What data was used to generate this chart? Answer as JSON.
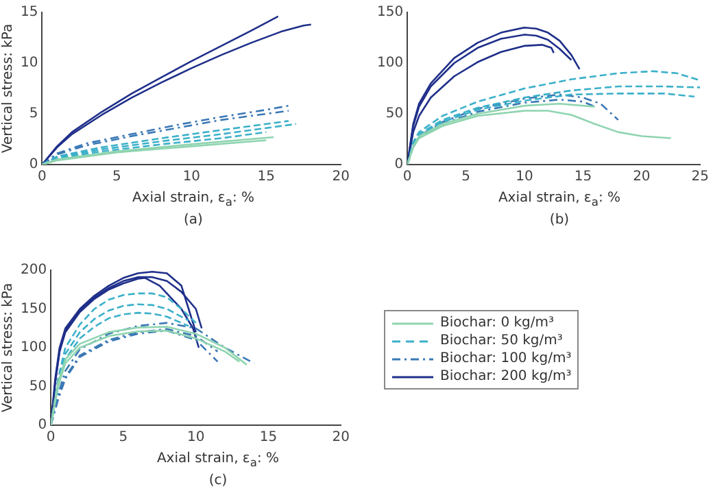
{
  "chart_data": [
    {
      "type": "line",
      "xlabel": "Axial strain, ε$_{a}$: %",
      "ylabel": "Vertical stress: kPa",
      "annotations": [
        "(a)"
      ],
      "xlim": [
        0,
        20
      ],
      "xticks": [
        0,
        5,
        10,
        15,
        20
      ],
      "ylim": [
        0,
        15
      ],
      "yticks": [
        0,
        5,
        10,
        15
      ],
      "marker": "none",
      "legend": false,
      "series": [
        {
          "color": "#8fd4b0",
          "line_style": "solid",
          "x": [
            0,
            1,
            5,
            10,
            15.5
          ],
          "values": [
            0,
            0.5,
            1.3,
            2.0,
            2.7
          ]
        },
        {
          "color": "#8fd4b0",
          "line_style": "solid",
          "x": [
            0,
            1,
            5,
            10,
            15
          ],
          "values": [
            0,
            0.4,
            1.2,
            1.8,
            2.4
          ]
        },
        {
          "color": "#3bb0c9",
          "line_style": "dashed",
          "x": [
            0,
            1,
            4,
            8,
            12,
            16.5
          ],
          "values": [
            0,
            0.8,
            1.7,
            2.6,
            3.4,
            4.3
          ]
        },
        {
          "color": "#3bb0c9",
          "line_style": "dashed",
          "x": [
            0,
            1,
            4,
            8,
            12,
            17
          ],
          "values": [
            0,
            0.7,
            1.5,
            2.3,
            3.0,
            4.0
          ]
        },
        {
          "color": "#3bb0c9",
          "line_style": "dashed",
          "x": [
            0,
            1,
            4,
            8,
            12,
            15
          ],
          "values": [
            0,
            0.6,
            1.3,
            2.0,
            2.6,
            3.2
          ]
        },
        {
          "color": "#3a78b5",
          "line_style": "dashdot",
          "x": [
            0,
            1,
            3,
            6,
            9,
            12,
            15,
            16.5
          ],
          "values": [
            0,
            1.1,
            2.1,
            3.0,
            3.9,
            4.7,
            5.4,
            5.8
          ]
        },
        {
          "color": "#3a78b5",
          "line_style": "dashdot",
          "x": [
            0,
            1,
            3,
            6,
            9,
            12,
            15,
            16.5
          ],
          "values": [
            0,
            1.0,
            1.9,
            2.8,
            3.6,
            4.4,
            5.0,
            5.3
          ]
        },
        {
          "color": "#1f2f8a",
          "line_style": "solid",
          "x": [
            0,
            1,
            2,
            4,
            6,
            8,
            10,
            12,
            14,
            15.8
          ],
          "values": [
            0,
            1.8,
            3.2,
            5.2,
            7.0,
            8.6,
            10.2,
            11.7,
            13.2,
            14.6
          ]
        },
        {
          "color": "#1f2f8a",
          "line_style": "solid",
          "x": [
            0,
            1,
            2,
            4,
            6,
            8,
            10,
            12,
            14,
            16,
            17.5,
            18
          ],
          "values": [
            0,
            1.7,
            3.0,
            4.9,
            6.6,
            8.1,
            9.5,
            10.8,
            12.0,
            13.1,
            13.7,
            13.8
          ]
        }
      ]
    },
    {
      "type": "line",
      "xlabel": "Axial strain, ε$_{a}$: %",
      "annotations": [
        "(b)"
      ],
      "xlim": [
        0,
        25
      ],
      "xticks": [
        0,
        5,
        10,
        15,
        20,
        25
      ],
      "ylim": [
        0,
        150
      ],
      "yticks": [
        0,
        50,
        100,
        150
      ],
      "marker": "none",
      "legend": false,
      "series": [
        {
          "color": "#8fd4b0",
          "line_style": "solid",
          "x": [
            0,
            0.5,
            1,
            3,
            6,
            10,
            13,
            16
          ],
          "values": [
            0,
            18,
            28,
            40,
            50,
            58,
            60,
            57
          ]
        },
        {
          "color": "#8fd4b0",
          "line_style": "solid",
          "x": [
            0,
            0.5,
            1,
            3,
            6,
            10,
            12,
            14,
            16,
            18,
            20,
            22.5
          ],
          "values": [
            0,
            17,
            26,
            38,
            48,
            53,
            53,
            49,
            40,
            32,
            28,
            26
          ]
        },
        {
          "color": "#3bb0c9",
          "line_style": "dashed",
          "x": [
            0,
            0.5,
            1,
            3,
            6,
            10,
            14,
            18,
            21,
            23,
            25
          ],
          "values": [
            0,
            22,
            32,
            48,
            62,
            75,
            84,
            90,
            92,
            90,
            83
          ]
        },
        {
          "color": "#3bb0c9",
          "line_style": "dashed",
          "x": [
            0,
            0.5,
            1,
            3,
            6,
            10,
            14,
            18,
            22,
            25
          ],
          "values": [
            0,
            20,
            30,
            44,
            56,
            66,
            73,
            77,
            77,
            76
          ]
        },
        {
          "color": "#3bb0c9",
          "line_style": "dashed",
          "x": [
            0,
            0.5,
            1,
            3,
            6,
            10,
            14,
            18,
            22,
            24.5
          ],
          "values": [
            0,
            20,
            29,
            42,
            54,
            63,
            69,
            70,
            70,
            67
          ]
        },
        {
          "color": "#3a78b5",
          "line_style": "dashdot",
          "x": [
            0,
            0.5,
            1,
            3,
            6,
            10,
            13,
            15,
            16.5,
            18
          ],
          "values": [
            0,
            18,
            28,
            42,
            55,
            65,
            69,
            66,
            60,
            44
          ]
        },
        {
          "color": "#3a78b5",
          "line_style": "dashdot",
          "x": [
            0,
            0.5,
            1,
            3,
            6,
            10,
            13,
            15,
            16
          ],
          "values": [
            0,
            17,
            27,
            40,
            52,
            61,
            64,
            62,
            57
          ]
        },
        {
          "color": "#1f2f8a",
          "line_style": "solid",
          "x": [
            0,
            0.5,
            1,
            2,
            4,
            6,
            8,
            10,
            11,
            12,
            13,
            14,
            14.7
          ],
          "values": [
            0,
            40,
            60,
            80,
            105,
            120,
            130,
            135,
            134,
            130,
            122,
            108,
            94
          ]
        },
        {
          "color": "#1f2f8a",
          "line_style": "solid",
          "x": [
            0,
            0.5,
            1,
            2,
            4,
            6,
            8,
            10,
            11,
            12,
            13,
            14
          ],
          "values": [
            0,
            38,
            57,
            77,
            100,
            115,
            124,
            128,
            127,
            123,
            114,
            103
          ]
        },
        {
          "color": "#1f2f8a",
          "line_style": "solid",
          "x": [
            0,
            0.5,
            1,
            2,
            4,
            6,
            8,
            10,
            11.5,
            12.3,
            12.5
          ],
          "values": [
            0,
            32,
            48,
            66,
            87,
            101,
            111,
            117,
            118,
            115,
            110
          ]
        }
      ]
    },
    {
      "type": "line",
      "xlabel": "Axial strain, ε$_{a}$: %",
      "ylabel": "Vertical stress: kPa",
      "annotations": [
        "(c)"
      ],
      "xlim": [
        0,
        20
      ],
      "xticks": [
        0,
        5,
        10,
        15,
        20
      ],
      "ylim": [
        0,
        200
      ],
      "yticks": [
        0,
        50,
        100,
        150,
        200
      ],
      "marker": "none",
      "legend": "right",
      "series": [
        {
          "name": "Biochar: 0 kg/m³",
          "color": "#8fd4b0",
          "line_style": "solid",
          "x": [
            0,
            0.5,
            1,
            2,
            4,
            6,
            8,
            10,
            12,
            13.5
          ],
          "values": [
            0,
            55,
            85,
            105,
            120,
            126,
            127,
            118,
            100,
            78
          ]
        },
        {
          "color": "#8fd4b0",
          "line_style": "solid",
          "x": [
            0,
            0.5,
            1,
            2,
            4,
            6,
            8,
            10,
            12,
            13
          ],
          "values": [
            0,
            50,
            80,
            100,
            115,
            121,
            122,
            112,
            95,
            82
          ]
        },
        {
          "name": "Biochar: 50 kg/m³",
          "color": "#3bb0c9",
          "line_style": "dashed",
          "x": [
            0,
            0.5,
            1,
            2,
            3,
            4,
            5,
            6,
            7,
            8,
            9,
            10
          ],
          "values": [
            0,
            60,
            100,
            130,
            150,
            162,
            168,
            170,
            170,
            165,
            150,
            132
          ]
        },
        {
          "color": "#3bb0c9",
          "line_style": "dashed",
          "x": [
            0,
            0.5,
            1,
            2,
            3,
            4,
            5,
            6,
            7,
            8,
            9.5
          ],
          "values": [
            0,
            55,
            92,
            120,
            137,
            148,
            154,
            156,
            155,
            150,
            135
          ]
        },
        {
          "color": "#3bb0c9",
          "line_style": "dashed",
          "x": [
            0,
            0.5,
            1,
            2,
            3,
            4,
            5,
            6,
            7,
            8,
            9.5
          ],
          "values": [
            0,
            50,
            85,
            112,
            127,
            138,
            143,
            145,
            144,
            140,
            128
          ]
        },
        {
          "name": "Biochar: 100 kg/m³",
          "color": "#3a78b5",
          "line_style": "dashdot",
          "x": [
            0,
            0.5,
            1,
            2,
            4,
            6,
            8,
            10,
            12,
            14
          ],
          "values": [
            0,
            40,
            70,
            98,
            118,
            128,
            132,
            125,
            100,
            80
          ]
        },
        {
          "color": "#3a78b5",
          "line_style": "dashdot",
          "x": [
            0,
            0.5,
            1,
            2,
            4,
            6,
            8,
            10,
            11.5
          ],
          "values": [
            0,
            35,
            62,
            90,
            110,
            120,
            124,
            115,
            95
          ]
        },
        {
          "color": "#3a78b5",
          "line_style": "dashdot",
          "x": [
            0,
            0.5,
            1,
            2,
            4,
            6,
            8,
            10,
            11.5
          ],
          "values": [
            0,
            33,
            60,
            88,
            108,
            118,
            122,
            110,
            82
          ]
        },
        {
          "name": "Biochar: 200 kg/m³",
          "color": "#1f2f8a",
          "line_style": "solid",
          "x": [
            0,
            0.3,
            0.6,
            1,
            2,
            3,
            4,
            5,
            6,
            7,
            8,
            9,
            9.5,
            10
          ],
          "values": [
            0,
            60,
            100,
            125,
            150,
            167,
            180,
            190,
            196,
            198,
            196,
            180,
            150,
            120
          ]
        },
        {
          "color": "#1f2f8a",
          "line_style": "solid",
          "x": [
            0,
            0.3,
            0.6,
            1,
            2,
            3,
            4,
            5,
            6,
            7,
            8,
            9,
            10,
            10.4
          ],
          "values": [
            0,
            55,
            95,
            122,
            148,
            165,
            177,
            186,
            191,
            191,
            186,
            172,
            150,
            125
          ]
        },
        {
          "color": "#1f2f8a",
          "line_style": "solid",
          "x": [
            0,
            0.3,
            0.6,
            1,
            2,
            3,
            4,
            5,
            6,
            6.5,
            7.5,
            9,
            9.8,
            10.2
          ],
          "values": [
            0,
            55,
            95,
            120,
            146,
            163,
            175,
            183,
            189,
            190,
            180,
            150,
            125,
            100
          ]
        }
      ]
    }
  ]
}
